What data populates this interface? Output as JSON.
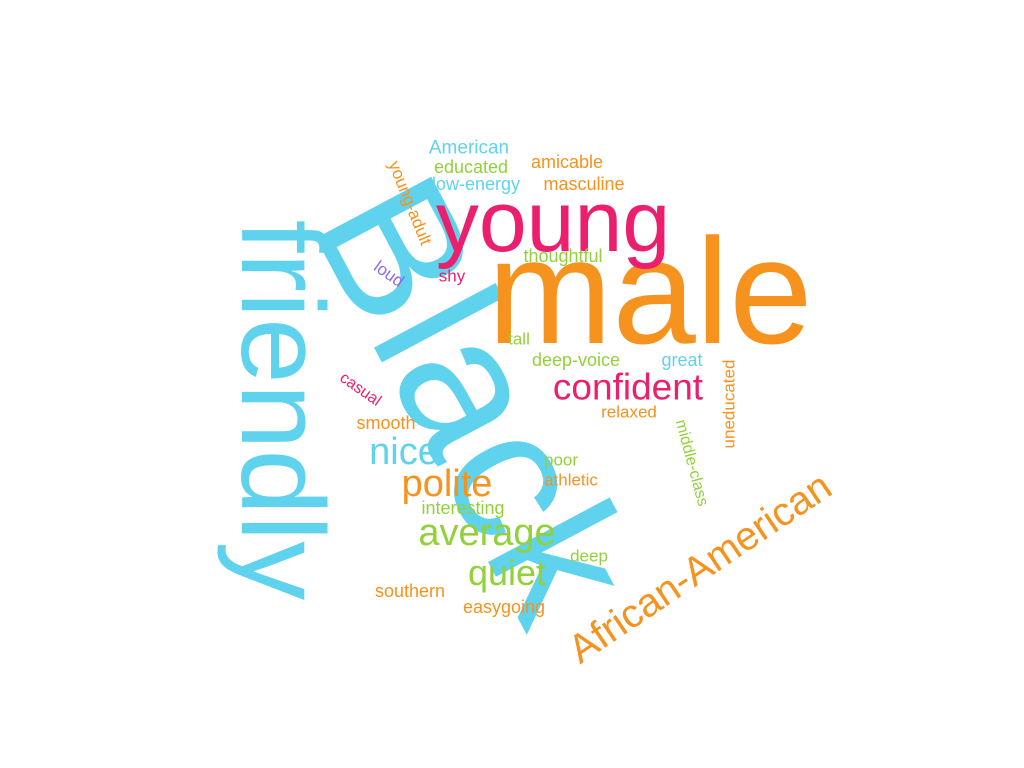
{
  "word_cloud": {
    "words": {
      "male": "male",
      "black": "Black",
      "friendly": "friendly",
      "young": "young",
      "confident": "confident",
      "african_american": "African-American",
      "nice": "nice",
      "polite": "polite",
      "average": "average",
      "quiet": "quiet",
      "american": "American",
      "educated": "educated",
      "amicable": "amicable",
      "low_energy": "low-energy",
      "masculine": "masculine",
      "young_adult": "young-adult",
      "thoughtful": "thoughtful",
      "loud": "loud",
      "shy": "shy",
      "tall": "tall",
      "deep_voice": "deep-voice",
      "great": "great",
      "casual": "casual",
      "smooth": "smooth",
      "relaxed": "relaxed",
      "middle_class": "middle-class",
      "uneducated": "uneducated",
      "poor": "poor",
      "athletic": "athletic",
      "interesting": "interesting",
      "deep": "deep",
      "southern": "southern",
      "easygoing": "easygoing"
    },
    "colors": {
      "blue": "#5fd3ee",
      "orange": "#f6921e",
      "pink": "#ec1f6f",
      "green": "#92d13a",
      "purple": "#8b6cf0"
    }
  }
}
